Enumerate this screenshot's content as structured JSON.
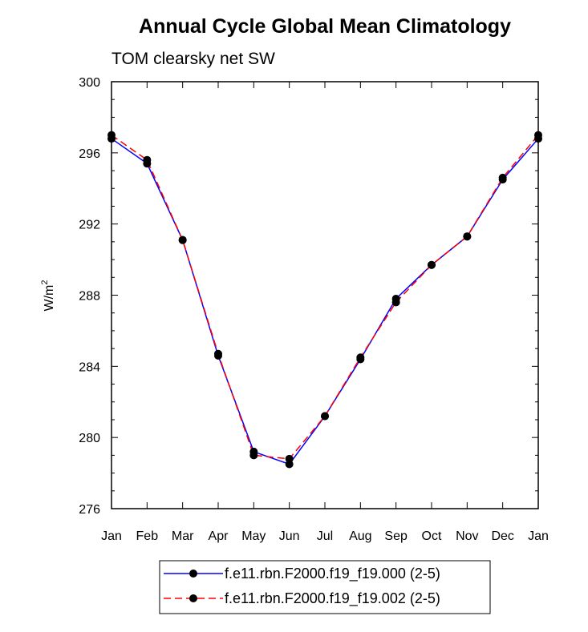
{
  "chart_data": {
    "type": "line",
    "title": "Annual Cycle Global Mean Climatology",
    "subtitle": "TOM clearsky net SW",
    "ylabel": "W/m",
    "ylabel_sup": "2",
    "xlabel": "",
    "categories": [
      "Jan",
      "Feb",
      "Mar",
      "Apr",
      "May",
      "Jun",
      "Jul",
      "Aug",
      "Sep",
      "Oct",
      "Nov",
      "Dec",
      "Jan"
    ],
    "ylim": [
      276,
      300
    ],
    "yticks": [
      276,
      280,
      284,
      288,
      292,
      296,
      300
    ],
    "ytick_labels": [
      "276",
      "280",
      "284",
      "288",
      "292",
      "296",
      "300"
    ],
    "series": [
      {
        "name": "f.e11.rbn.F2000.f19_f19.000 (2-5)",
        "color": "#0000ff",
        "style": "solid",
        "values": [
          296.8,
          295.4,
          291.1,
          284.6,
          279.2,
          278.5,
          281.2,
          284.4,
          287.8,
          289.7,
          291.3,
          294.5,
          296.8
        ]
      },
      {
        "name": "f.e11.rbn.F2000.f19_f19.002 (2-5)",
        "color": "#ff0000",
        "style": "dashed",
        "values": [
          297.0,
          295.6,
          291.1,
          284.7,
          279.0,
          278.8,
          281.2,
          284.5,
          287.6,
          289.7,
          291.3,
          294.6,
          297.0
        ]
      }
    ],
    "marker_color": "#000000",
    "legend_position": "bottom-center"
  }
}
